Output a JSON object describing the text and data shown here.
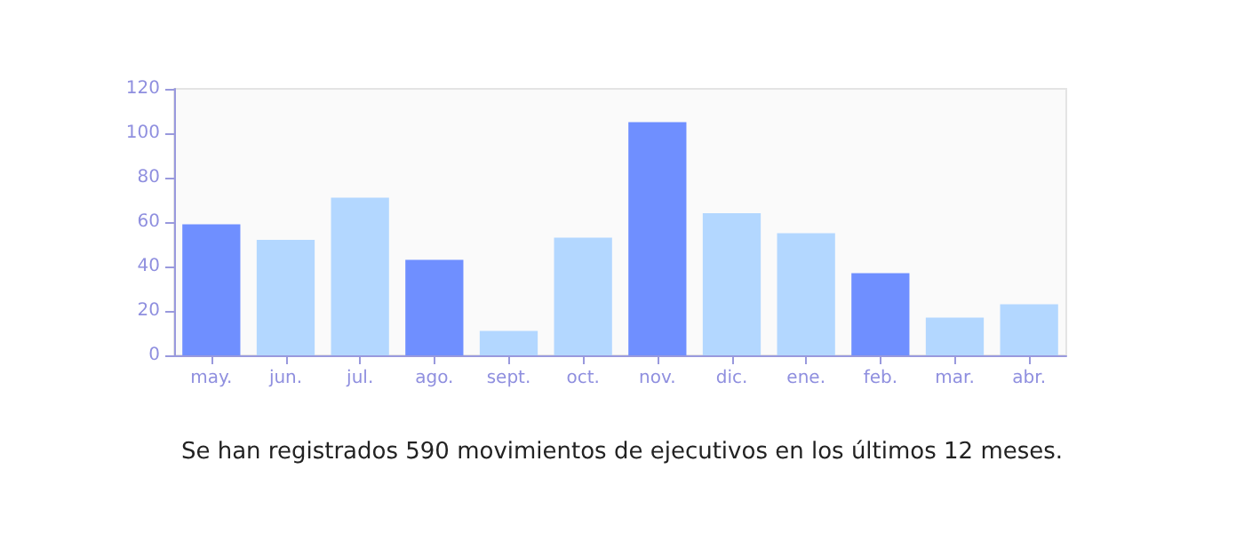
{
  "chart_data": {
    "type": "bar",
    "categories": [
      "may.",
      "jun.",
      "jul.",
      "ago.",
      "sept.",
      "oct.",
      "nov.",
      "dic.",
      "ene.",
      "feb.",
      "mar.",
      "abr."
    ],
    "values": [
      59,
      52,
      71,
      43,
      11,
      53,
      105,
      64,
      55,
      37,
      17,
      23
    ],
    "colors": [
      "#6f8fff",
      "#b3d7ff",
      "#b3d7ff",
      "#6f8fff",
      "#b3d7ff",
      "#b3d7ff",
      "#6f8fff",
      "#b3d7ff",
      "#b3d7ff",
      "#6f8fff",
      "#b3d7ff",
      "#b3d7ff"
    ],
    "ylim": [
      0,
      120
    ],
    "yticks": [
      0,
      20,
      40,
      60,
      80,
      100,
      120
    ],
    "grid": false,
    "annotations": [
      "Se han registrados 590 movimientos de ejecutivos en los últimos 12 meses."
    ]
  }
}
